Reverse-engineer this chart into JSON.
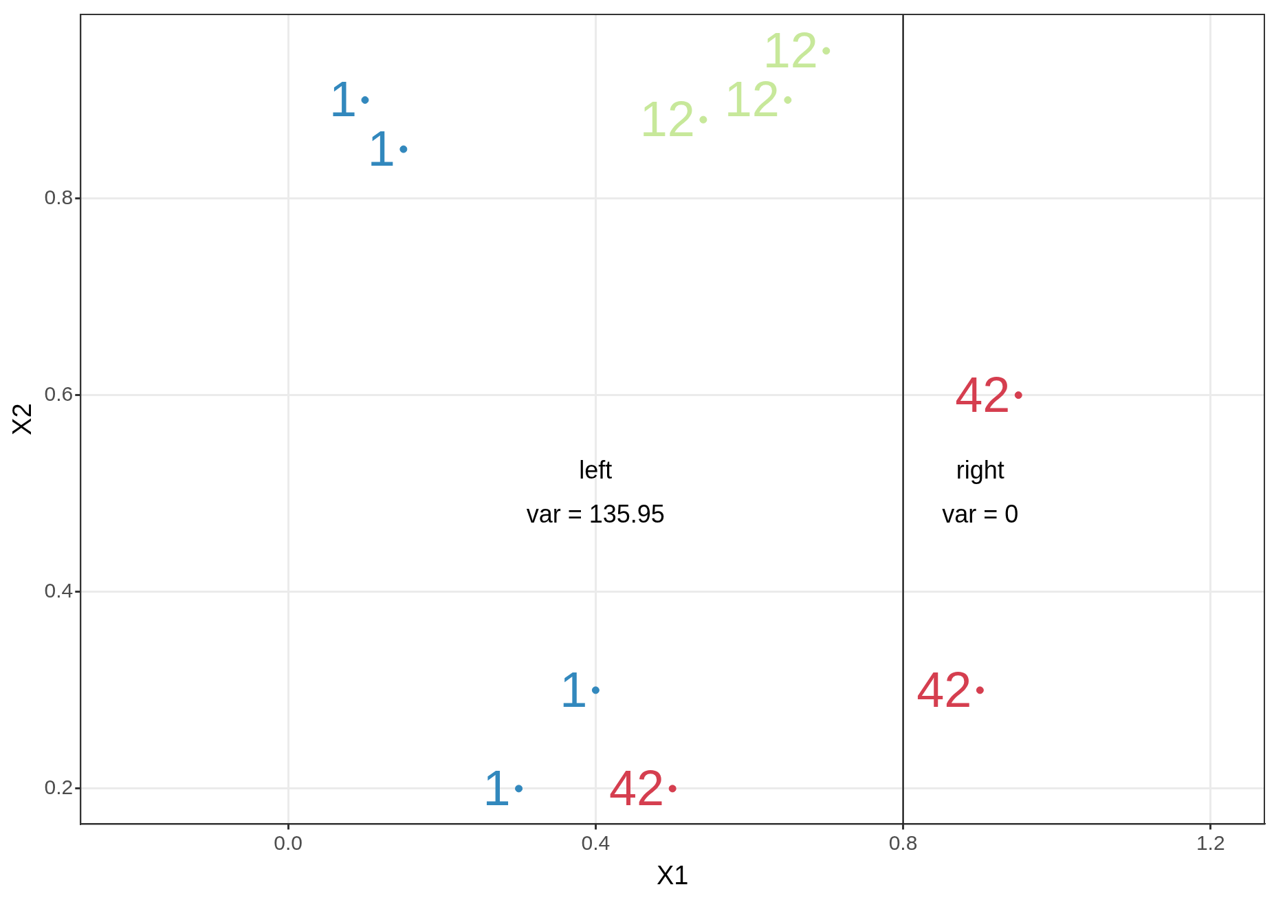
{
  "chart_data": {
    "type": "scatter",
    "xlabel": "X1",
    "ylabel": "X2",
    "xlim": [
      -0.27,
      1.27
    ],
    "ylim": [
      0.164,
      0.987
    ],
    "xticks": [
      {
        "value": 0,
        "label": "0.0"
      },
      0.4,
      {
        "value": 0.8,
        "label": "0.8"
      },
      1.2
    ],
    "yticks": [
      0.2,
      0.4,
      0.6,
      0.8
    ],
    "grid": true,
    "legend": false,
    "marker": "circle",
    "series": [
      {
        "name": "1",
        "color": "#3288bd",
        "x": [
          0.1,
          0.15,
          0.4,
          0.3
        ],
        "values": [
          0.9,
          0.85,
          0.3,
          0.2
        ]
      },
      {
        "name": "12",
        "color": "#c7e89a",
        "x": [
          0.54,
          0.65,
          0.7
        ],
        "values": [
          0.88,
          0.9,
          0.95
        ]
      },
      {
        "name": "42",
        "color": "#d53e4f",
        "x": [
          0.95,
          0.9,
          0.5
        ],
        "values": [
          0.6,
          0.3,
          0.2
        ]
      }
    ],
    "ref_lines": [
      {
        "axis": "x",
        "value": 0.8,
        "color": "#000000"
      }
    ],
    "annotations": [
      "left\nvar = 135.95",
      "right\nvar = 0"
    ]
  }
}
